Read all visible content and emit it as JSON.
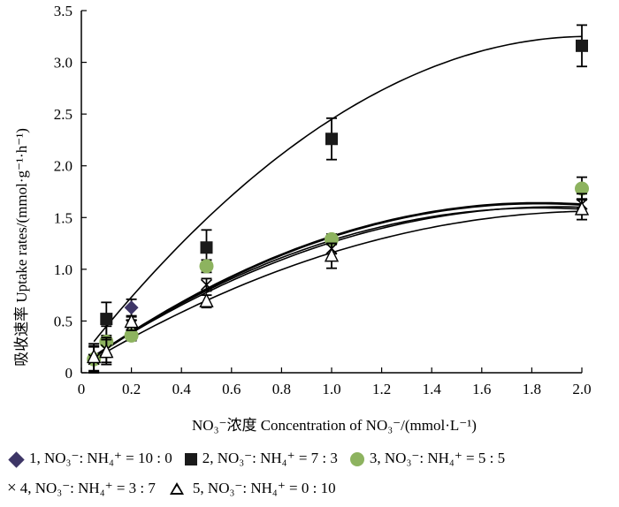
{
  "chart_data": {
    "type": "scatter",
    "ylabel": "吸收速率 Uptake rates/(mmol·g⁻¹·h⁻¹)",
    "xlabel": "NO₃⁻浓度  Concentration of NO₃⁻/(mmol·L⁻¹)",
    "xlim": [
      0,
      2.0
    ],
    "ylim": [
      0,
      3.5
    ],
    "x_ticks": [
      "0",
      "0.2",
      "0.4",
      "0.6",
      "0.8",
      "1.0",
      "1.2",
      "1.4",
      "1.6",
      "1.8",
      "2.0"
    ],
    "y_ticks": [
      "0",
      "0.5",
      "1.0",
      "1.5",
      "2.0",
      "2.5",
      "3.0",
      "3.5"
    ],
    "x_tick_values": [
      0,
      0.2,
      0.4,
      0.6,
      0.8,
      1.0,
      1.2,
      1.4,
      1.6,
      1.8,
      2.0
    ],
    "y_tick_values": [
      0,
      0.5,
      1.0,
      1.5,
      2.0,
      2.5,
      3.0,
      3.5
    ],
    "series": [
      {
        "name": "1, NO₃⁻: NH₄⁺ = 10 : 0",
        "marker": "diamond",
        "color": "#3d3566",
        "x": [
          0.2
        ],
        "y": [
          0.63
        ],
        "err": [
          0.08
        ],
        "curve": [
          -0.47,
          1.72,
          0.06
        ]
      },
      {
        "name": "2, NO₃⁻: NH₄⁺ = 7 : 3",
        "marker": "square",
        "color": "#1a1a1a",
        "x": [
          0.1,
          0.5,
          1.0,
          2.0
        ],
        "y": [
          0.52,
          1.21,
          2.26,
          3.16
        ],
        "err": [
          0.16,
          0.17,
          0.2,
          0.2
        ],
        "curve": [
          -0.75,
          3.05,
          0.15
        ]
      },
      {
        "name": "3, NO₃⁻: NH₄⁺ = 5 : 5",
        "marker": "circle",
        "color": "#8db35f",
        "x": [
          0.05,
          0.1,
          0.2,
          0.5,
          1.0,
          2.0
        ],
        "y": [
          0.13,
          0.3,
          0.36,
          1.03,
          1.29,
          1.78
        ],
        "err": [
          0.13,
          0.15,
          0.05,
          0.06,
          0.05,
          0.11
        ],
        "curve": [
          -0.47,
          1.72,
          0.07
        ]
      },
      {
        "name": "4, NO₃⁻: NH₄⁺ = 3 : 7",
        "marker": "cross",
        "color": "#000000",
        "x": [
          0.05,
          0.1,
          0.2,
          0.5,
          1.0,
          2.0
        ],
        "y": [
          0.13,
          0.22,
          0.46,
          0.85,
          1.2,
          1.63
        ],
        "err": [
          0.12,
          0.12,
          0.05,
          0.06,
          0.05,
          0.1
        ],
        "curve": [
          -0.42,
          1.6,
          0.08
        ]
      },
      {
        "name": "5, NO₃⁻: NH₄⁺ = 0 : 10",
        "marker": "triangle",
        "color": "#000000",
        "x": [
          0.05,
          0.1,
          0.2,
          0.5,
          1.0,
          2.0
        ],
        "y": [
          0.15,
          0.2,
          0.49,
          0.69,
          1.13,
          1.58
        ],
        "err": [
          0.13,
          0.12,
          0.05,
          0.06,
          0.12,
          0.1
        ],
        "curve": [
          -0.35,
          1.45,
          0.06
        ]
      }
    ],
    "extra_curves": [
      [
        -0.45,
        1.65,
        0.08
      ]
    ]
  },
  "legend": {
    "row1": [
      "1, NO₃⁻: NH₄⁺ = 10 : 0",
      "2, NO₃⁻: NH₄⁺ = 7 : 3",
      "3, NO₃⁻: NH₄⁺ = 5 : 5"
    ],
    "row2": [
      "4, NO₃⁻: NH₄⁺ = 3 : 7",
      "5, NO₃⁻: NH₄⁺ = 0 : 10"
    ]
  }
}
